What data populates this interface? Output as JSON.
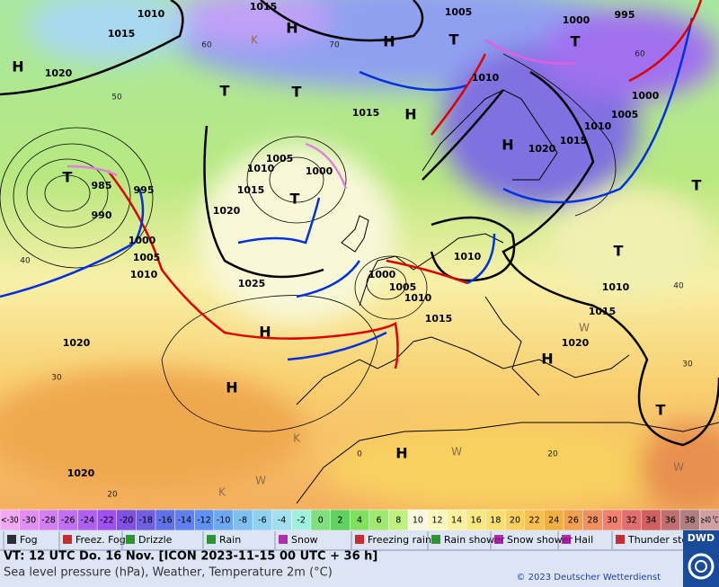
{
  "map": {
    "pressure_centers": [
      "H",
      "H",
      "H",
      "H",
      "H",
      "H",
      "H",
      "H",
      "H",
      "T",
      "T",
      "T",
      "T",
      "T",
      "T",
      "T",
      "T",
      "T"
    ],
    "marks": [
      "K",
      "K",
      "K",
      "W",
      "W",
      "W",
      "W"
    ],
    "isobar_labels": [
      1010,
      1015,
      1015,
      1020,
      1005,
      1000,
      995,
      1010,
      1015,
      1020,
      1015,
      1010,
      1005,
      1000,
      1005,
      1000,
      1010,
      1015,
      985,
      995,
      990,
      1020,
      1000,
      1005,
      1010,
      1025,
      1000,
      1005,
      1010,
      1015,
      1010,
      1010,
      1015,
      1020,
      1020,
      1020
    ],
    "latitude_labels": [
      60,
      50,
      40,
      30,
      20,
      70,
      60,
      40,
      30,
      20,
      0
    ]
  },
  "color_scale": {
    "labels": [
      "<-30",
      -30,
      -28,
      -26,
      -24,
      -22,
      -20,
      -18,
      -16,
      -14,
      -12,
      -10,
      -8,
      -6,
      -4,
      -2,
      0,
      2,
      4,
      6,
      8,
      10,
      12,
      14,
      16,
      18,
      20,
      22,
      24,
      26,
      28,
      30,
      32,
      34,
      36,
      38,
      "≥40 °C"
    ],
    "colors": [
      "#f0a8f0",
      "#e090f0",
      "#d080f0",
      "#c070f0",
      "#b060f0",
      "#a050f0",
      "#8050e0",
      "#7060e0",
      "#6070e8",
      "#6080f0",
      "#6090f0",
      "#70a8f0",
      "#80c0f0",
      "#90d0f0",
      "#a0e0f0",
      "#a0f0e0",
      "#80e080",
      "#60d060",
      "#80e060",
      "#a0e870",
      "#c0f080",
      "#f8f8e0",
      "#f8f8c0",
      "#f8f0a0",
      "#f8e880",
      "#f8e070",
      "#f8d060",
      "#f8c050",
      "#f0b040",
      "#f0a050",
      "#f09060",
      "#f08070",
      "#e07070",
      "#d06060",
      "#c07070",
      "#b08080",
      "#d0a0a0"
    ]
  },
  "weather_legend": [
    "Fog",
    "Freez. Fog",
    "Drizzle",
    "Rain",
    "Snow",
    "Freezing rain",
    "Rain shower",
    "Snow shower",
    "Hail",
    "Thunder storm"
  ],
  "footer": {
    "valid_time": "VT: 12 UTC Do.  16 Nov. [ICON 2023-11-15  00 UTC + 36 h]",
    "description": "Sea level pressure (hPa), Weather, Temperature 2m (°C)",
    "copyright": "© 2023 Deutscher Wetterdienst",
    "logo": "DWD"
  }
}
